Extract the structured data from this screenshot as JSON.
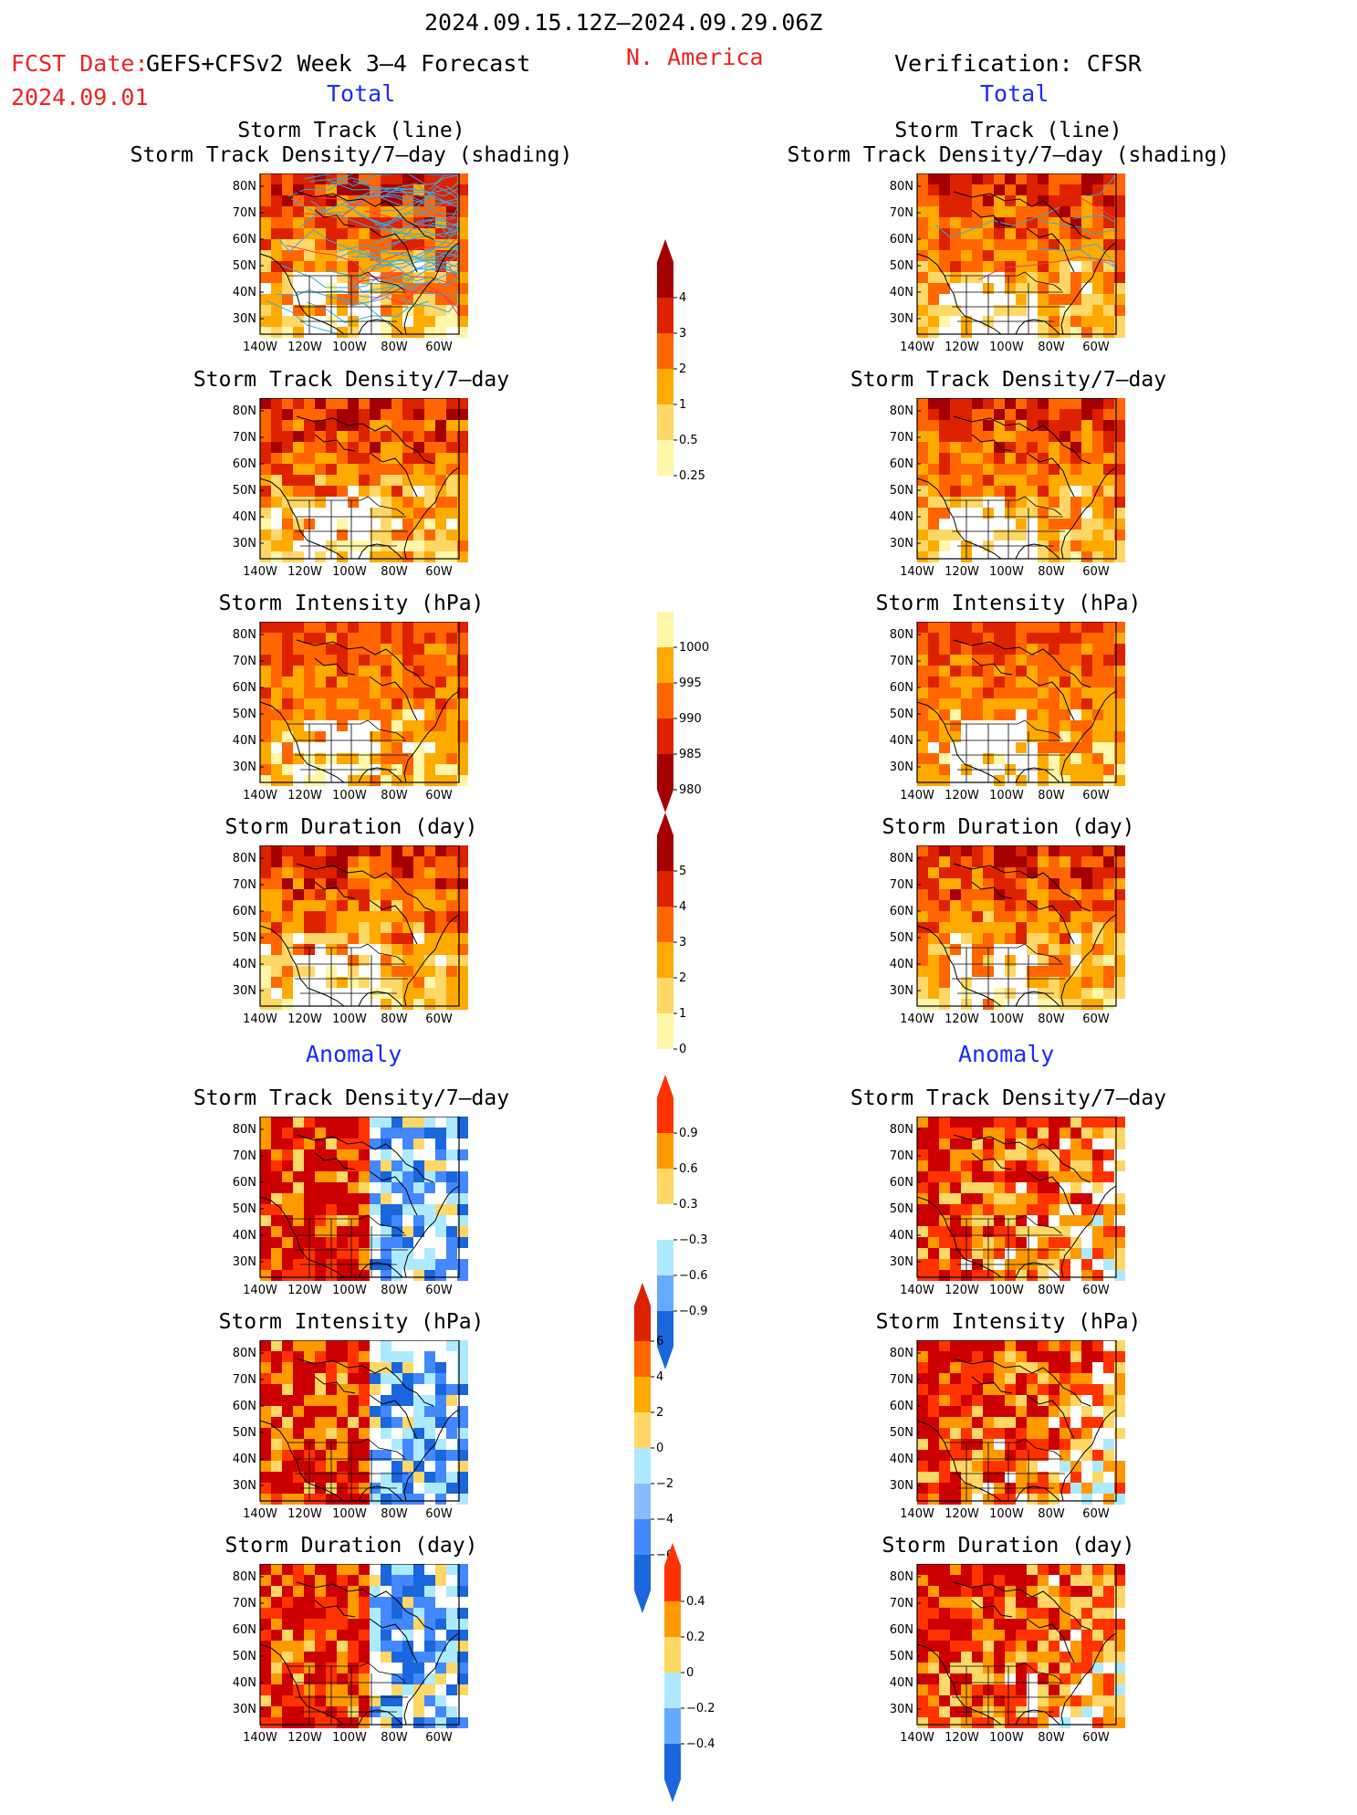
{
  "header": {
    "period": "2024.09.15.12Z–2024.09.29.06Z",
    "fcst_date_label": "FCST Date:",
    "fcst_date": "2024.09.01",
    "model": "GEFS+CFSv2 Week 3–4 Forecast",
    "region": "N. America",
    "verification": "Verification: CFSR"
  },
  "sections": {
    "total_left": "Total",
    "total_right": "Total",
    "anom_left": "Anomaly",
    "anom_right": "Anomaly"
  },
  "titles": {
    "p1a": "Storm Track (line)",
    "p1b": "Storm Track Density/7–day (shading)",
    "p2": "Storm Track Density/7–day",
    "p3": "Storm Intensity (hPa)",
    "p4": "Storm Duration (day)",
    "p5": "Storm Track Density/7–day",
    "p6": "Storm Intensity (hPa)",
    "p7": "Storm Duration (day)"
  },
  "axes": {
    "lat_labels": [
      "80N",
      "70N",
      "60N",
      "50N",
      "40N",
      "30N"
    ],
    "lon_labels": [
      "140W",
      "120W",
      "100W",
      "80W",
      "60W"
    ]
  },
  "colorbars": [
    {
      "id": "density",
      "labels": [
        "4",
        "3",
        "2",
        "1",
        "0.5",
        "0.25"
      ],
      "colors": [
        "#a50000",
        "#dd2200",
        "#ff6600",
        "#ffaa00",
        "#ffd766",
        "#fff6aa"
      ],
      "extend": "top"
    },
    {
      "id": "intensity",
      "labels": [
        "1000",
        "995",
        "990",
        "985",
        "980"
      ],
      "colors": [
        "#fff6aa",
        "#ffaa00",
        "#ff6600",
        "#dd2200",
        "#a50000"
      ],
      "extend": "bottom"
    },
    {
      "id": "duration",
      "labels": [
        "5",
        "4",
        "3",
        "2",
        "1",
        "0"
      ],
      "colors": [
        "#a50000",
        "#dd2200",
        "#ff6600",
        "#ffaa00",
        "#ffd766",
        "#fff6aa"
      ],
      "extend": "top"
    },
    {
      "id": "density_anom",
      "labels": [
        "0.9",
        "0.6",
        "0.3",
        "−0.3",
        "−0.6",
        "−0.9"
      ],
      "colors": [
        "#ff3300",
        "#ff9900",
        "#ffd766",
        "#ffffff",
        "#aeeaff",
        "#66aaff",
        "#1a66dd"
      ],
      "extend": "both"
    },
    {
      "id": "intensity_anom",
      "labels": [
        "6",
        "4",
        "2",
        "0",
        "−2",
        "−4",
        "−6"
      ],
      "colors": [
        "#dd2200",
        "#ff6600",
        "#ffaa00",
        "#ffd766",
        "#aeeaff",
        "#88bbff",
        "#4488ff",
        "#1a66dd"
      ],
      "extend": "both"
    },
    {
      "id": "duration_anom",
      "labels": [
        "0.4",
        "0.2",
        "0",
        "−0.2",
        "−0.4"
      ],
      "colors": [
        "#ff3300",
        "#ff9900",
        "#ffd766",
        "#aeeaff",
        "#66aaff",
        "#1a66dd"
      ],
      "extend": "both"
    }
  ]
}
